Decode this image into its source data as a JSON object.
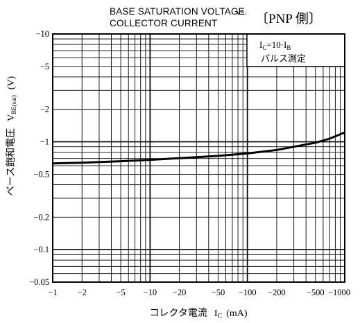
{
  "chart_data": {
    "type": "line",
    "title_line1": "BASE SATURATION VOLTAGE",
    "title_vs": "vs.",
    "title_line2": "COLLECTOR CURRENT",
    "title_tag": "〔PNP 側〕",
    "xlabel": "コレクタ電流",
    "xlabel_symbol": "I",
    "xlabel_sub": "C",
    "xlabel_unit": "(mA)",
    "ylabel": "ベース飽和電圧",
    "ylabel_symbol": "V",
    "ylabel_sub": "BE(sat)",
    "ylabel_unit": "(V)",
    "x_scale": "log",
    "y_scale": "log",
    "xlim": [
      1,
      1000
    ],
    "ylim": [
      0.05,
      10
    ],
    "x_ticks": [
      {
        "value": 1,
        "label": "−1"
      },
      {
        "value": 2,
        "label": "−2"
      },
      {
        "value": 5,
        "label": "−5"
      },
      {
        "value": 10,
        "label": "−10"
      },
      {
        "value": 20,
        "label": "−20"
      },
      {
        "value": 50,
        "label": "−50"
      },
      {
        "value": 100,
        "label": "−100"
      },
      {
        "value": 200,
        "label": "−200"
      },
      {
        "value": 500,
        "label": "−500"
      },
      {
        "value": 1000,
        "label": "−1000"
      }
    ],
    "y_ticks": [
      {
        "value": 0.05,
        "label": "−0.05"
      },
      {
        "value": 0.1,
        "label": "−0.1"
      },
      {
        "value": 0.2,
        "label": "−0.2"
      },
      {
        "value": 0.5,
        "label": "−0.5"
      },
      {
        "value": 1,
        "label": "−1"
      },
      {
        "value": 2,
        "label": "−2"
      },
      {
        "value": 5,
        "label": "−5"
      },
      {
        "value": 10,
        "label": "−10"
      }
    ],
    "grid": true,
    "condition_line1": "I",
    "condition_sub1": "C",
    "condition_mid": "=10·I",
    "condition_sub2": "B",
    "condition_line2": "パルス測定",
    "series": [
      {
        "x": [
          1,
          2,
          5,
          10,
          20,
          50,
          100,
          200,
          300,
          500,
          700,
          1000
        ],
        "y": [
          0.63,
          0.64,
          0.66,
          0.68,
          0.705,
          0.74,
          0.78,
          0.84,
          0.9,
          0.98,
          1.07,
          1.22
        ]
      }
    ]
  }
}
